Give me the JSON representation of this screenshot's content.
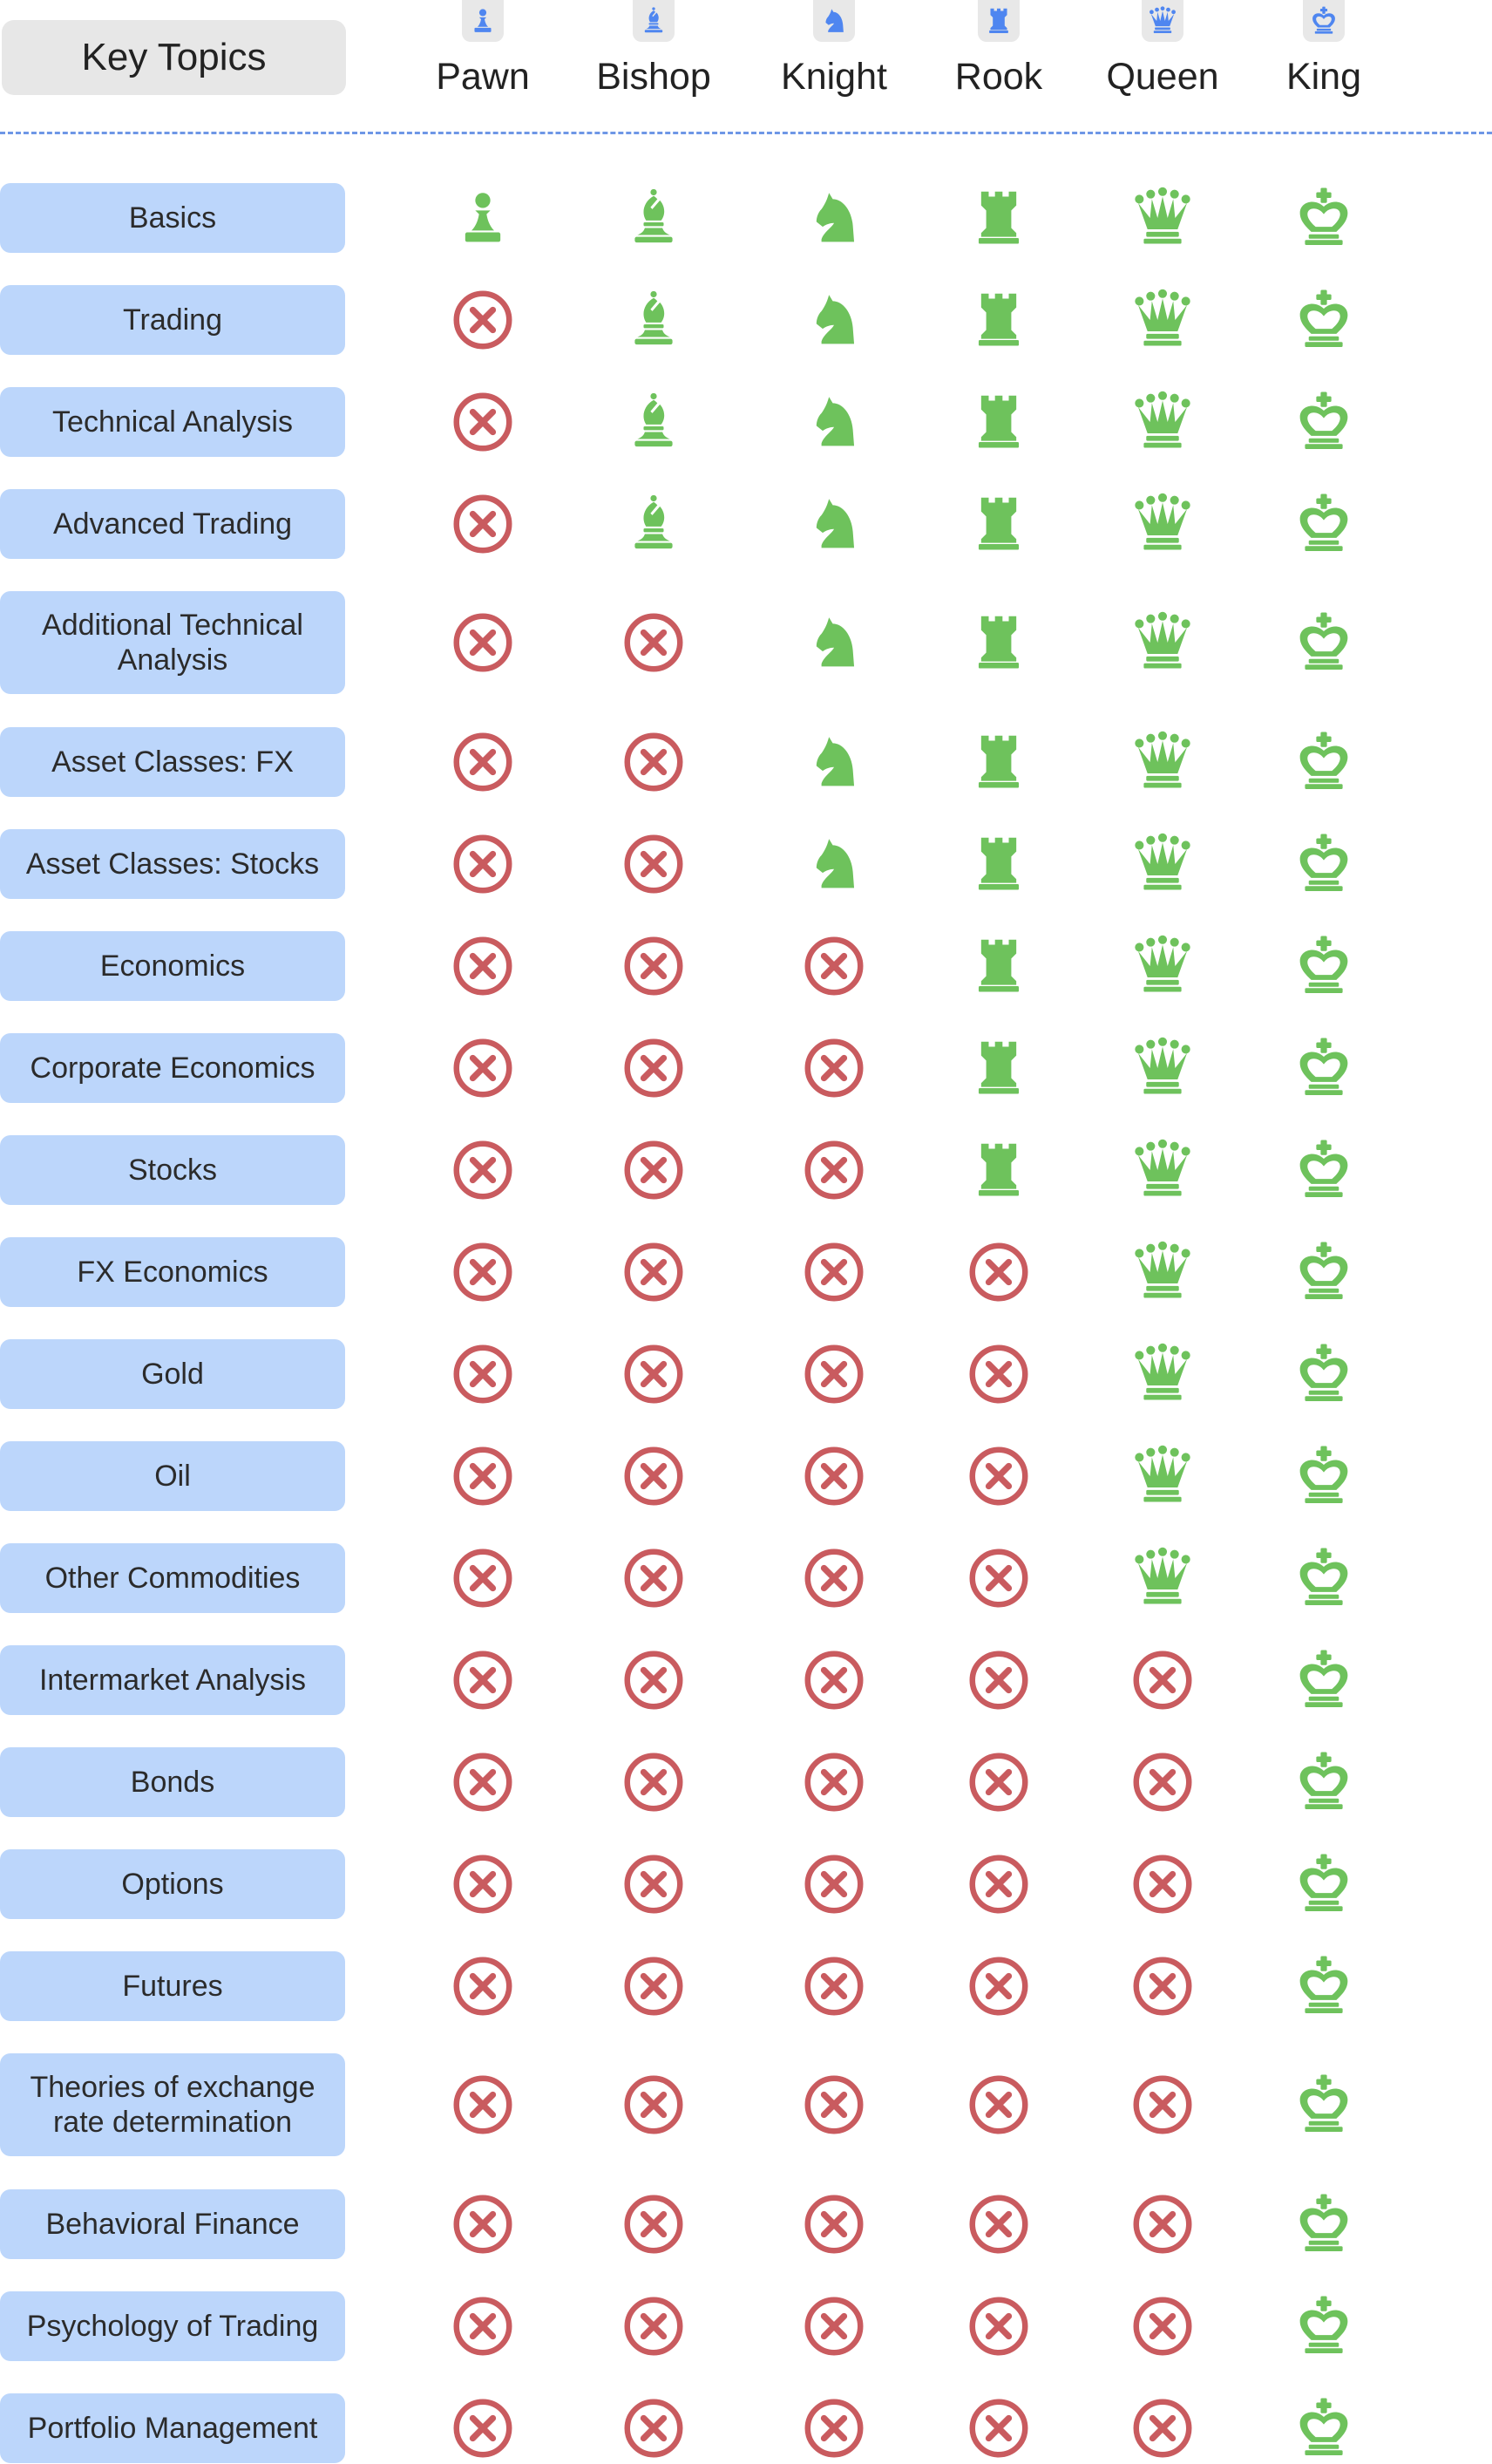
{
  "header": {
    "key_topics_label": "Key Topics",
    "levels": [
      {
        "name": "Pawn",
        "icon": "pawn"
      },
      {
        "name": "Bishop",
        "icon": "bishop"
      },
      {
        "name": "Knight",
        "icon": "knight"
      },
      {
        "name": "Rook",
        "icon": "rook"
      },
      {
        "name": "Queen",
        "icon": "queen"
      },
      {
        "name": "King",
        "icon": "king"
      }
    ]
  },
  "colors": {
    "badge_icon": "#4f86f0",
    "included": "#6ec25c",
    "excluded": "#c95b5f",
    "topic_bg": "#bcd6fb",
    "divider": "#6e97e6"
  },
  "topics": [
    {
      "label": "Basics",
      "included": [
        true,
        true,
        true,
        true,
        true,
        true
      ]
    },
    {
      "label": "Trading",
      "included": [
        false,
        true,
        true,
        true,
        true,
        true
      ]
    },
    {
      "label": "Technical Analysis",
      "included": [
        false,
        true,
        true,
        true,
        true,
        true
      ]
    },
    {
      "label": "Advanced  Trading",
      "included": [
        false,
        true,
        true,
        true,
        true,
        true
      ]
    },
    {
      "label": "Additional Technical\nAnalysis",
      "included": [
        false,
        false,
        true,
        true,
        true,
        true
      ]
    },
    {
      "label": "Asset Classes: FX",
      "included": [
        false,
        false,
        true,
        true,
        true,
        true
      ]
    },
    {
      "label": "Asset Classes: Stocks",
      "included": [
        false,
        false,
        true,
        true,
        true,
        true
      ]
    },
    {
      "label": "Economics",
      "included": [
        false,
        false,
        false,
        true,
        true,
        true
      ]
    },
    {
      "label": "Corporate Economics",
      "included": [
        false,
        false,
        false,
        true,
        true,
        true
      ]
    },
    {
      "label": "Stocks",
      "included": [
        false,
        false,
        false,
        true,
        true,
        true
      ]
    },
    {
      "label": "FX Economics",
      "included": [
        false,
        false,
        false,
        false,
        true,
        true
      ]
    },
    {
      "label": "Gold",
      "included": [
        false,
        false,
        false,
        false,
        true,
        true
      ]
    },
    {
      "label": "Oil",
      "included": [
        false,
        false,
        false,
        false,
        true,
        true
      ]
    },
    {
      "label": "Other Commodities",
      "included": [
        false,
        false,
        false,
        false,
        true,
        true
      ]
    },
    {
      "label": "Intermarket Analysis",
      "included": [
        false,
        false,
        false,
        false,
        false,
        true
      ]
    },
    {
      "label": "Bonds",
      "included": [
        false,
        false,
        false,
        false,
        false,
        true
      ]
    },
    {
      "label": "Options",
      "included": [
        false,
        false,
        false,
        false,
        false,
        true
      ]
    },
    {
      "label": "Futures",
      "included": [
        false,
        false,
        false,
        false,
        false,
        true
      ]
    },
    {
      "label": "Theories of exchange\nrate determination",
      "included": [
        false,
        false,
        false,
        false,
        false,
        true
      ]
    },
    {
      "label": "Behavioral Finance",
      "included": [
        false,
        false,
        false,
        false,
        false,
        true
      ]
    },
    {
      "label": "Psychology of Trading",
      "included": [
        false,
        false,
        false,
        false,
        false,
        true
      ]
    },
    {
      "label": "Portfolio Management",
      "included": [
        false,
        false,
        false,
        false,
        false,
        true
      ]
    }
  ]
}
